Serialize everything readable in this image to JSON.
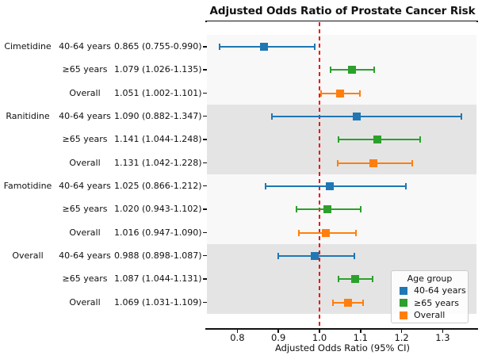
{
  "colors": {
    "blue": "#1f77b4",
    "green": "#2ca02c",
    "orange": "#ff7f0e",
    "ref_line": "#ee1111",
    "band_light": "#f8f8f8",
    "band_dark": "#e4e4e4",
    "text": "#111111"
  },
  "legend": {
    "title": "Age group",
    "items": [
      {
        "label": "40-64 years",
        "color": "#1f77b4"
      },
      {
        "label": "≥65 years",
        "color": "#2ca02c"
      },
      {
        "label": "Overall",
        "color": "#ff7f0e"
      }
    ]
  },
  "chart_data": {
    "type": "scatter",
    "subtype": "forest-plot-with-error-bars",
    "title": "Adjusted Odds Ratio of Prostate Cancer Risk",
    "xlabel": "Adjusted Odds Ratio (95% CI)",
    "x_ticks": [
      0.8,
      0.9,
      1.0,
      1.1,
      1.2,
      1.3
    ],
    "xlim": [
      0.726,
      1.382
    ],
    "reference_line": 1.0,
    "grid": false,
    "legend_position": "lower right",
    "groups": [
      {
        "name": "Cimetidine",
        "shaded": false
      },
      {
        "name": "Ranitidine",
        "shaded": true
      },
      {
        "name": "Famotidine",
        "shaded": false
      },
      {
        "name": "Overall",
        "shaded": true
      }
    ],
    "rows": [
      {
        "drug": "Cimetidine",
        "age_group": "40-64 years",
        "estimate_label": "0.865 (0.755-0.990)",
        "or": 0.865,
        "ci_low": 0.755,
        "ci_high": 0.99,
        "color": "#1f77b4"
      },
      {
        "drug": "Cimetidine",
        "age_group": "≥65 years",
        "estimate_label": "1.079 (1.026-1.135)",
        "or": 1.079,
        "ci_low": 1.026,
        "ci_high": 1.135,
        "color": "#2ca02c"
      },
      {
        "drug": "Cimetidine",
        "age_group": "Overall",
        "estimate_label": "1.051 (1.002-1.101)",
        "or": 1.051,
        "ci_low": 1.002,
        "ci_high": 1.101,
        "color": "#ff7f0e"
      },
      {
        "drug": "Ranitidine",
        "age_group": "40-64 years",
        "estimate_label": "1.090 (0.882-1.347)",
        "or": 1.09,
        "ci_low": 0.882,
        "ci_high": 1.347,
        "color": "#1f77b4"
      },
      {
        "drug": "Ranitidine",
        "age_group": "≥65 years",
        "estimate_label": "1.141 (1.044-1.248)",
        "or": 1.141,
        "ci_low": 1.044,
        "ci_high": 1.248,
        "color": "#2ca02c"
      },
      {
        "drug": "Ranitidine",
        "age_group": "Overall",
        "estimate_label": "1.131 (1.042-1.228)",
        "or": 1.131,
        "ci_low": 1.042,
        "ci_high": 1.228,
        "color": "#ff7f0e"
      },
      {
        "drug": "Famotidine",
        "age_group": "40-64 years",
        "estimate_label": "1.025 (0.866-1.212)",
        "or": 1.025,
        "ci_low": 0.866,
        "ci_high": 1.212,
        "color": "#1f77b4"
      },
      {
        "drug": "Famotidine",
        "age_group": "≥65 years",
        "estimate_label": "1.020 (0.943-1.102)",
        "or": 1.02,
        "ci_low": 0.943,
        "ci_high": 1.102,
        "color": "#2ca02c"
      },
      {
        "drug": "Famotidine",
        "age_group": "Overall",
        "estimate_label": "1.016 (0.947-1.090)",
        "or": 1.016,
        "ci_low": 0.947,
        "ci_high": 1.09,
        "color": "#ff7f0e"
      },
      {
        "drug": "Overall",
        "age_group": "40-64 years",
        "estimate_label": "0.988 (0.898-1.087)",
        "or": 0.988,
        "ci_low": 0.898,
        "ci_high": 1.087,
        "color": "#1f77b4"
      },
      {
        "drug": "Overall",
        "age_group": "≥65 years",
        "estimate_label": "1.087 (1.044-1.131)",
        "or": 1.087,
        "ci_low": 1.044,
        "ci_high": 1.131,
        "color": "#2ca02c"
      },
      {
        "drug": "Overall",
        "age_group": "Overall",
        "estimate_label": "1.069 (1.031-1.109)",
        "or": 1.069,
        "ci_low": 1.031,
        "ci_high": 1.109,
        "color": "#ff7f0e"
      }
    ]
  }
}
